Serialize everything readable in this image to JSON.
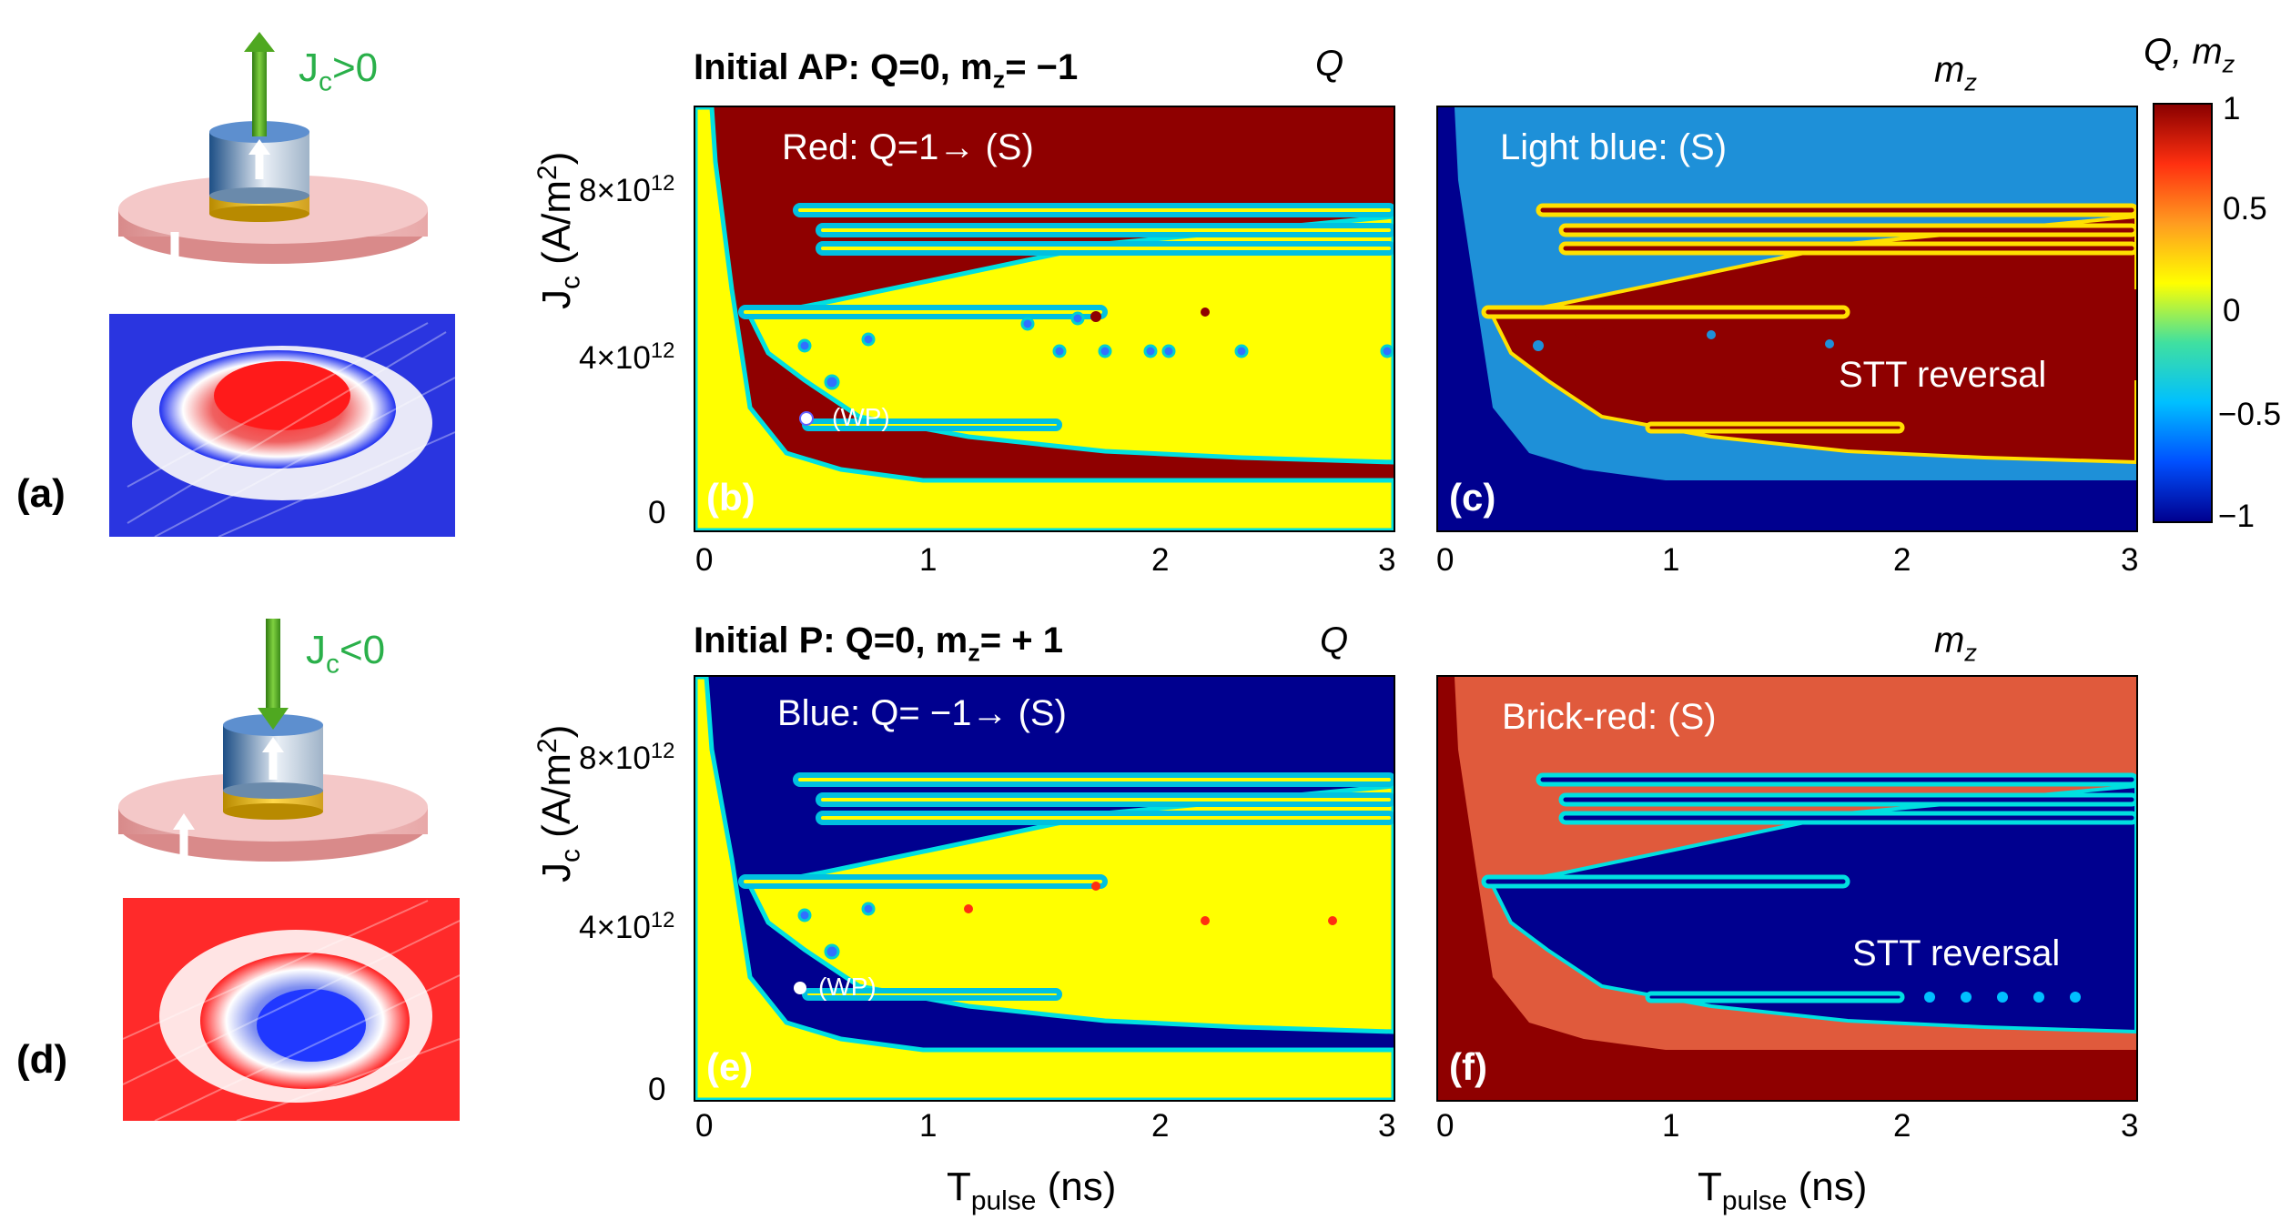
{
  "left_panels": {
    "a": {
      "label": "(a)",
      "current": "J",
      "current_sub": "c",
      "current_rel": ">0"
    },
    "d": {
      "label": "(d)",
      "current": "J",
      "current_sub": "c",
      "current_rel": "<0"
    }
  },
  "rows": {
    "top": {
      "title_main": "Initial AP: Q=0, m",
      "title_sub": "z",
      "title_end": "= −1"
    },
    "bottom": {
      "title_main": "Initial P: Q=0, m",
      "title_sub": "z",
      "title_end": "= + 1"
    }
  },
  "maps": {
    "b": {
      "letter": "(b)",
      "symbol": "Q",
      "note": "Red: Q=1→ (S)",
      "wp": "(WP)"
    },
    "c": {
      "letter": "(c)",
      "symbol_main": "m",
      "symbol_sub": "z",
      "note": "Light blue: (S)",
      "region": "STT reversal"
    },
    "e": {
      "letter": "(e)",
      "symbol": "Q",
      "note": "Blue: Q= −1→ (S)",
      "wp": "(WP)"
    },
    "f": {
      "letter": "(f)",
      "symbol_main": "m",
      "symbol_sub": "z",
      "note": "Brick-red: (S)",
      "region": "STT reversal"
    }
  },
  "axes": {
    "y_label_main": "J",
    "y_label_sub": "c",
    "y_label_unit": " (A/m",
    "y_label_sup": "2",
    "y_label_close": ")",
    "y_ticks": [
      {
        "base": "8×10",
        "exp": "12"
      },
      {
        "base": "4×10",
        "exp": "12"
      },
      {
        "base": "0",
        "exp": ""
      }
    ],
    "x_ticks": [
      "0",
      "1",
      "2",
      "3"
    ],
    "x_label_main": "T",
    "x_label_sub": "pulse",
    "x_label_unit": " (ns)"
  },
  "colorbar": {
    "title_main": "Q, m",
    "title_sub": "z",
    "ticks": [
      "1",
      "0.5",
      "0",
      "−0.5",
      "−1"
    ],
    "colors": [
      "#00008f",
      "#0050ff",
      "#00c0ff",
      "#40e0a0",
      "#ffff00",
      "#ff9c20",
      "#ff3010",
      "#8a0000"
    ]
  },
  "chart_data": {
    "type": "heatmap",
    "xlabel": "T_pulse (ns)",
    "ylabel": "J_c (A/m^2)",
    "xlim": [
      0,
      3
    ],
    "ylim": [
      0,
      10000000000000.0
    ],
    "x_ticks": [
      0,
      1,
      2,
      3
    ],
    "y_ticks": [
      0,
      4000000000000.0,
      8000000000000.0
    ],
    "colorbar_range": [
      -1,
      1
    ],
    "working_point": {
      "t_ns": 0.45,
      "jc": 2600000000000.0
    },
    "panels": [
      {
        "id": "b",
        "quantity": "Q",
        "initial": "AP",
        "switched_value": 1,
        "unswitched_value": 0
      },
      {
        "id": "c",
        "quantity": "m_z",
        "initial": "AP",
        "switched_value": -0.8,
        "reversal_value": 1,
        "background_value": -1
      },
      {
        "id": "e",
        "quantity": "Q",
        "initial": "P",
        "switched_value": -1,
        "unswitched_value": 0
      },
      {
        "id": "f",
        "quantity": "m_z",
        "initial": "P",
        "switched_value": 0.8,
        "reversal_value": -1,
        "background_value": 1
      }
    ]
  }
}
